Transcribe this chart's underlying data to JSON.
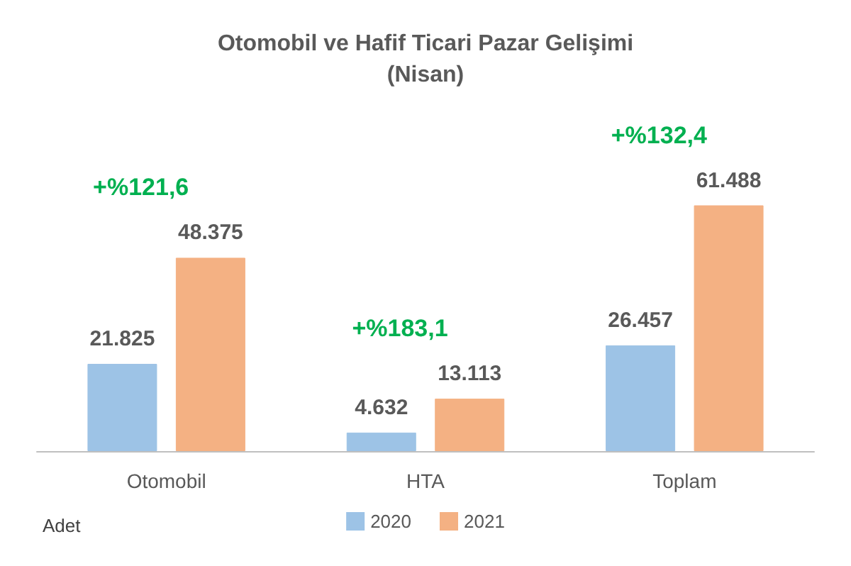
{
  "chart_data": {
    "type": "bar",
    "title": "Otomobil ve Hafif Ticari Pazar Gelişimi",
    "subtitle": "(Nisan)",
    "categories": [
      "Otomobil",
      "HTA",
      "Toplam"
    ],
    "series": [
      {
        "name": "2020",
        "color": "#9dc3e6",
        "values": [
          21825,
          4632,
          26457
        ],
        "value_labels": [
          "21.825",
          "4.632",
          "26.457"
        ]
      },
      {
        "name": "2021",
        "color": "#f4b183",
        "values": [
          48375,
          13113,
          61488
        ],
        "value_labels": [
          "48.375",
          "13.113",
          "61.488"
        ]
      }
    ],
    "annotations": [
      "+%121,6",
      "+%183,1",
      "+%132,4",
      "Adet"
    ],
    "legend": "bottom",
    "grid": false
  }
}
